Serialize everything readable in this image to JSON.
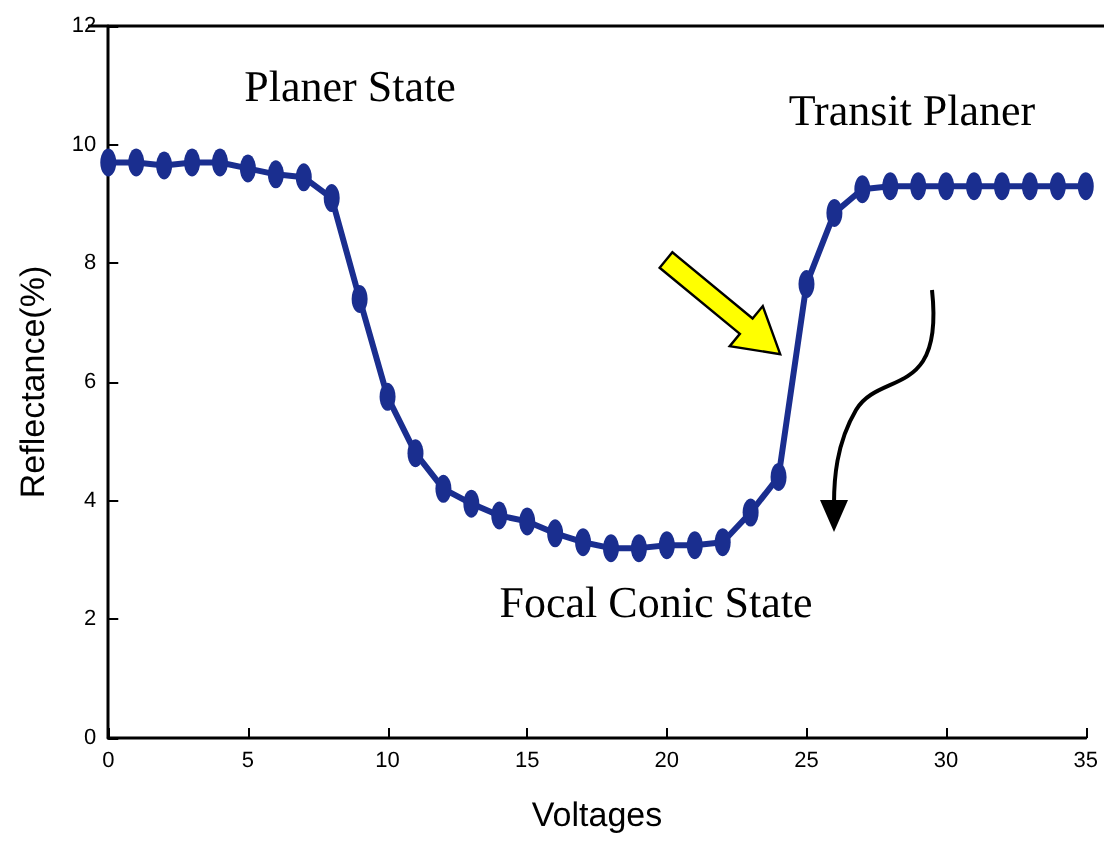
{
  "chart_data": {
    "type": "line",
    "xlabel": "Voltages",
    "ylabel": "Reflectance(%)",
    "x": [
      0,
      1,
      2,
      3,
      4,
      5,
      6,
      7,
      8,
      9,
      10,
      11,
      12,
      13,
      14,
      15,
      16,
      17,
      18,
      19,
      20,
      21,
      22,
      23,
      24,
      25,
      26,
      27,
      28,
      29,
      30,
      31,
      32,
      33,
      34,
      35
    ],
    "series": [
      {
        "color": "#1a2e8f",
        "values": [
          9.7,
          9.7,
          9.65,
          9.7,
          9.7,
          9.6,
          9.5,
          9.45,
          9.1,
          7.4,
          5.75,
          4.8,
          4.2,
          3.95,
          3.75,
          3.65,
          3.45,
          3.3,
          3.2,
          3.2,
          3.25,
          3.25,
          3.3,
          3.8,
          4.4,
          7.65,
          8.85,
          9.25,
          9.3,
          9.3,
          9.3,
          9.3,
          9.3,
          9.3,
          9.3,
          9.3
        ]
      }
    ],
    "xlim": [
      0,
      35
    ],
    "xticks": [
      0,
      5,
      10,
      15,
      20,
      25,
      30,
      35
    ],
    "ylim": [
      0,
      12
    ],
    "yticks": [
      0,
      2,
      4,
      6,
      8,
      10,
      12
    ],
    "marker": "circle",
    "line_style": "solid",
    "annotations": [
      "Planer State",
      "Transit Planer",
      "Focal Conic State"
    ]
  }
}
